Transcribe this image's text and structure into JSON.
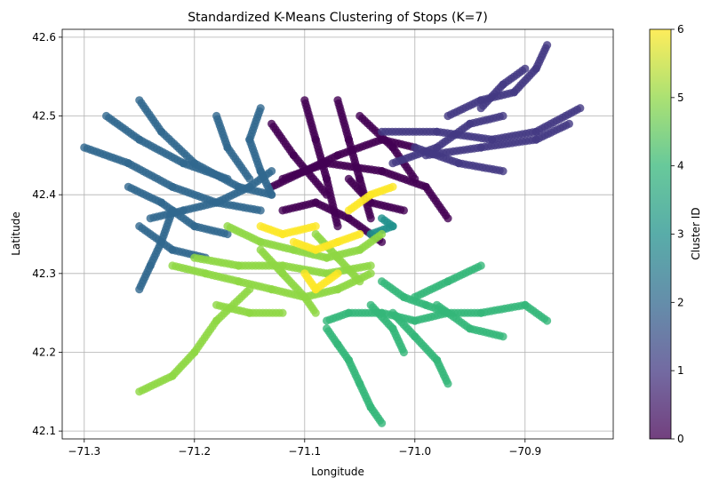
{
  "chart_data": {
    "type": "scatter",
    "title": "Standardized K-Means Clustering of Stops (K=7)",
    "xlabel": "Longitude",
    "ylabel": "Latitude",
    "xlim": [
      -71.32,
      -70.82
    ],
    "ylim": [
      42.09,
      42.61
    ],
    "xticks": [
      -71.3,
      -71.2,
      -71.1,
      -71.0,
      -70.9
    ],
    "xtick_labels": [
      "−71.3",
      "−71.2",
      "−71.1",
      "−71.0",
      "−70.9"
    ],
    "yticks": [
      42.1,
      42.2,
      42.3,
      42.4,
      42.5,
      42.6
    ],
    "ytick_labels": [
      "42.1",
      "42.2",
      "42.3",
      "42.4",
      "42.5",
      "42.6"
    ],
    "grid": true,
    "colormap": "viridis",
    "colorbar": {
      "label": "Cluster ID",
      "range": [
        0,
        6
      ],
      "ticks": [
        0,
        1,
        2,
        3,
        4,
        5,
        6
      ],
      "tick_labels": [
        "0",
        "1",
        "2",
        "3",
        "4",
        "5",
        "6"
      ]
    },
    "series": [
      {
        "cluster": 0,
        "color": "#440154",
        "routes": [
          [
            [
              -71.12,
              42.42
            ],
            [
              -71.08,
              42.44
            ],
            [
              -71.03,
              42.43
            ],
            [
              -70.99,
              42.41
            ],
            [
              -70.97,
              42.37
            ]
          ],
          [
            [
              -71.1,
              42.52
            ],
            [
              -71.09,
              42.47
            ],
            [
              -71.08,
              42.42
            ],
            [
              -71.07,
              42.36
            ]
          ],
          [
            [
              -71.07,
              42.52
            ],
            [
              -71.06,
              42.47
            ],
            [
              -71.05,
              42.42
            ],
            [
              -71.04,
              42.37
            ]
          ],
          [
            [
              -71.13,
              42.49
            ],
            [
              -71.11,
              42.45
            ],
            [
              -71.08,
              42.4
            ]
          ],
          [
            [
              -71.12,
              42.38
            ],
            [
              -71.09,
              42.39
            ],
            [
              -71.06,
              42.37
            ],
            [
              -71.03,
              42.34
            ]
          ],
          [
            [
              -71.05,
              42.5
            ],
            [
              -71.02,
              42.46
            ],
            [
              -71.0,
              42.42
            ]
          ],
          [
            [
              -71.13,
              42.41
            ],
            [
              -71.1,
              42.43
            ],
            [
              -71.07,
              42.45
            ],
            [
              -71.03,
              42.47
            ],
            [
              -71.0,
              42.46
            ]
          ],
          [
            [
              -71.06,
              42.42
            ],
            [
              -71.04,
              42.39
            ],
            [
              -71.01,
              42.38
            ]
          ]
        ]
      },
      {
        "cluster": 1,
        "color": "#443983",
        "routes": [
          [
            [
              -71.03,
              42.48
            ],
            [
              -70.98,
              42.48
            ],
            [
              -70.93,
              42.47
            ],
            [
              -70.89,
              42.48
            ],
            [
              -70.85,
              42.51
            ]
          ],
          [
            [
              -70.97,
              42.5
            ],
            [
              -70.94,
              42.52
            ],
            [
              -70.91,
              42.53
            ],
            [
              -70.89,
              42.56
            ],
            [
              -70.88,
              42.59
            ]
          ],
          [
            [
              -71.0,
              42.46
            ],
            [
              -70.96,
              42.44
            ],
            [
              -70.92,
              42.43
            ]
          ],
          [
            [
              -71.02,
              42.44
            ],
            [
              -70.98,
              42.46
            ],
            [
              -70.95,
              42.49
            ],
            [
              -70.92,
              42.5
            ]
          ],
          [
            [
              -70.99,
              42.45
            ],
            [
              -70.94,
              42.46
            ],
            [
              -70.89,
              42.47
            ],
            [
              -70.86,
              42.49
            ]
          ],
          [
            [
              -70.94,
              42.51
            ],
            [
              -70.92,
              42.54
            ],
            [
              -70.9,
              42.56
            ]
          ]
        ]
      },
      {
        "cluster": 2,
        "color": "#31688e",
        "routes": [
          [
            [
              -71.25,
              42.52
            ],
            [
              -71.23,
              42.48
            ],
            [
              -71.2,
              42.44
            ],
            [
              -71.16,
              42.41
            ],
            [
              -71.13,
              42.4
            ]
          ],
          [
            [
              -71.3,
              42.46
            ],
            [
              -71.26,
              42.44
            ],
            [
              -71.22,
              42.41
            ],
            [
              -71.18,
              42.39
            ],
            [
              -71.14,
              42.38
            ]
          ],
          [
            [
              -71.28,
              42.5
            ],
            [
              -71.25,
              42.47
            ],
            [
              -71.21,
              42.44
            ],
            [
              -71.17,
              42.42
            ]
          ],
          [
            [
              -71.24,
              42.37
            ],
            [
              -71.21,
              42.38
            ],
            [
              -71.18,
              42.39
            ],
            [
              -71.15,
              42.41
            ],
            [
              -71.13,
              42.43
            ]
          ],
          [
            [
              -71.25,
              42.28
            ],
            [
              -71.24,
              42.31
            ],
            [
              -71.23,
              42.34
            ],
            [
              -71.22,
              42.38
            ]
          ],
          [
            [
              -71.14,
              42.51
            ],
            [
              -71.15,
              42.47
            ],
            [
              -71.14,
              42.43
            ],
            [
              -71.13,
              42.4
            ]
          ],
          [
            [
              -71.18,
              42.5
            ],
            [
              -71.17,
              42.46
            ],
            [
              -71.15,
              42.42
            ]
          ],
          [
            [
              -71.26,
              42.41
            ],
            [
              -71.23,
              42.39
            ],
            [
              -71.2,
              42.36
            ],
            [
              -71.17,
              42.35
            ]
          ],
          [
            [
              -71.25,
              42.36
            ],
            [
              -71.22,
              42.33
            ],
            [
              -71.19,
              42.32
            ]
          ]
        ]
      },
      {
        "cluster": 3,
        "color": "#21918c",
        "routes": [
          [
            [
              -71.03,
              42.37
            ],
            [
              -71.02,
              42.36
            ],
            [
              -71.04,
              42.35
            ]
          ]
        ]
      },
      {
        "cluster": 4,
        "color": "#35b779",
        "routes": [
          [
            [
              -71.08,
              42.24
            ],
            [
              -71.06,
              42.25
            ],
            [
              -71.03,
              42.25
            ],
            [
              -71.0,
              42.24
            ],
            [
              -70.97,
              42.25
            ],
            [
              -70.94,
              42.25
            ],
            [
              -70.9,
              42.26
            ],
            [
              -70.88,
              42.24
            ]
          ],
          [
            [
              -71.06,
              42.19
            ],
            [
              -71.05,
              42.16
            ],
            [
              -71.04,
              42.13
            ],
            [
              -71.03,
              42.11
            ]
          ],
          [
            [
              -71.03,
              42.29
            ],
            [
              -71.01,
              42.27
            ],
            [
              -70.99,
              42.26
            ],
            [
              -70.97,
              42.25
            ]
          ],
          [
            [
              -71.02,
              42.25
            ],
            [
              -71.0,
              42.22
            ],
            [
              -70.98,
              42.19
            ],
            [
              -70.97,
              42.16
            ]
          ],
          [
            [
              -71.0,
              42.27
            ],
            [
              -70.97,
              42.29
            ],
            [
              -70.94,
              42.31
            ]
          ],
          [
            [
              -71.04,
              42.26
            ],
            [
              -71.02,
              42.23
            ],
            [
              -71.01,
              42.2
            ]
          ],
          [
            [
              -70.98,
              42.26
            ],
            [
              -70.95,
              42.23
            ],
            [
              -70.92,
              42.22
            ]
          ],
          [
            [
              -71.08,
              42.23
            ],
            [
              -71.07,
              42.21
            ],
            [
              -71.06,
              42.19
            ]
          ]
        ]
      },
      {
        "cluster": 5,
        "color": "#8fd744",
        "routes": [
          [
            [
              -71.17,
              42.36
            ],
            [
              -71.14,
              42.34
            ],
            [
              -71.11,
              42.33
            ],
            [
              -71.08,
              42.32
            ],
            [
              -71.05,
              42.33
            ],
            [
              -71.03,
              42.35
            ]
          ],
          [
            [
              -71.22,
              42.31
            ],
            [
              -71.19,
              42.3
            ],
            [
              -71.16,
              42.29
            ],
            [
              -71.13,
              42.28
            ],
            [
              -71.1,
              42.27
            ],
            [
              -71.07,
              42.28
            ],
            [
              -71.04,
              42.3
            ]
          ],
          [
            [
              -71.15,
              42.28
            ],
            [
              -71.18,
              42.24
            ],
            [
              -71.2,
              42.2
            ],
            [
              -71.22,
              42.17
            ],
            [
              -71.25,
              42.15
            ]
          ],
          [
            [
              -71.2,
              42.32
            ],
            [
              -71.16,
              42.31
            ],
            [
              -71.12,
              42.31
            ],
            [
              -71.08,
              42.3
            ],
            [
              -71.04,
              42.31
            ]
          ],
          [
            [
              -71.14,
              42.33
            ],
            [
              -71.12,
              42.3
            ],
            [
              -71.1,
              42.27
            ],
            [
              -71.09,
              42.25
            ]
          ],
          [
            [
              -71.09,
              42.35
            ],
            [
              -71.07,
              42.32
            ],
            [
              -71.05,
              42.29
            ]
          ],
          [
            [
              -71.18,
              42.26
            ],
            [
              -71.15,
              42.25
            ],
            [
              -71.12,
              42.25
            ]
          ]
        ]
      },
      {
        "cluster": 6,
        "color": "#fde725",
        "routes": [
          [
            [
              -71.06,
              42.38
            ],
            [
              -71.04,
              42.4
            ],
            [
              -71.02,
              42.41
            ]
          ],
          [
            [
              -71.11,
              42.34
            ],
            [
              -71.09,
              42.33
            ],
            [
              -71.07,
              42.34
            ],
            [
              -71.05,
              42.35
            ]
          ],
          [
            [
              -71.1,
              42.3
            ],
            [
              -71.09,
              42.28
            ],
            [
              -71.07,
              42.3
            ]
          ],
          [
            [
              -71.14,
              42.36
            ],
            [
              -71.12,
              42.35
            ],
            [
              -71.09,
              42.36
            ]
          ]
        ]
      }
    ]
  }
}
